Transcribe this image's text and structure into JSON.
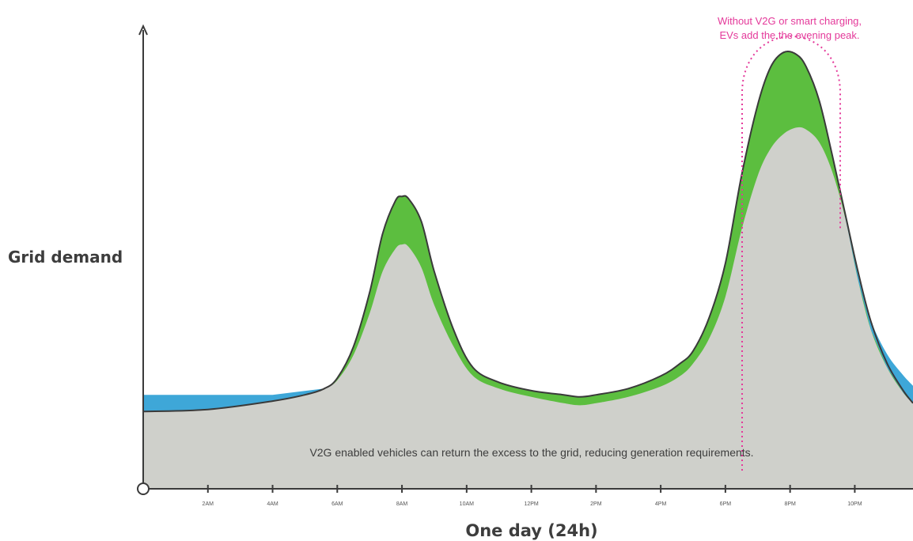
{
  "chart_data": {
    "type": "area",
    "title": "",
    "xlabel": "One day (24h)",
    "ylabel": "Grid demand",
    "x_unit": "hour of day",
    "xlim": [
      0,
      23.8
    ],
    "ylim": [
      0,
      100
    ],
    "tick_labels": [
      {
        "x": 2,
        "label": "2AM"
      },
      {
        "x": 4,
        "label": "4AM"
      },
      {
        "x": 6,
        "label": "6AM"
      },
      {
        "x": 8,
        "label": "8AM"
      },
      {
        "x": 10,
        "label": "10AM"
      },
      {
        "x": 12,
        "label": "12PM"
      },
      {
        "x": 14,
        "label": "2PM"
      },
      {
        "x": 16,
        "label": "4PM"
      },
      {
        "x": 18,
        "label": "6PM"
      },
      {
        "x": 20,
        "label": "8PM"
      },
      {
        "x": 22,
        "label": "10PM"
      }
    ],
    "series": [
      {
        "role": "base",
        "color": "#cfd0cb",
        "x": [
          0,
          2,
          4,
          5,
          5.6,
          6,
          6.5,
          7,
          7.4,
          7.8,
          8,
          8.2,
          8.6,
          9,
          9.6,
          10.2,
          11,
          12,
          13,
          13.5,
          14,
          15,
          16,
          16.6,
          17,
          17.5,
          18,
          18.5,
          19,
          19.4,
          19.8,
          20.2,
          20.5,
          20.9,
          21.3,
          21.7,
          22.1,
          22.5,
          23,
          23.5,
          23.8
        ],
        "values": [
          18.5,
          19,
          21,
          22.5,
          24,
          26,
          32,
          42,
          52,
          57.5,
          58.5,
          58,
          53,
          44,
          34,
          27,
          24,
          22,
          20.5,
          20,
          20.5,
          22,
          24.5,
          27,
          30,
          36,
          46,
          62,
          75,
          81.5,
          85,
          86.5,
          86,
          83,
          76,
          65,
          50,
          38,
          29,
          23,
          20.5
        ]
      },
      {
        "role": "total_with_ev",
        "color": "#5cbe3f",
        "x": [
          0,
          2,
          4,
          5,
          5.6,
          6,
          6.5,
          7,
          7.4,
          7.8,
          8,
          8.2,
          8.6,
          9,
          9.6,
          10.2,
          11,
          12,
          13,
          13.5,
          14,
          15,
          16,
          16.6,
          17,
          17.5,
          18,
          18.5,
          19,
          19.4,
          19.8,
          20.2,
          20.5,
          20.9,
          21.3,
          21.7,
          22.1,
          22.5,
          23,
          23.5,
          23.8
        ],
        "values": [
          18.5,
          19,
          21,
          22.5,
          24,
          26.5,
          34,
          47,
          61,
          69,
          70,
          69.5,
          64,
          52,
          38,
          29,
          25.5,
          23.5,
          22.5,
          22,
          22.5,
          24,
          27,
          30,
          33,
          41,
          54,
          75,
          92,
          101,
          104.5,
          104,
          101,
          93,
          80,
          66,
          52,
          40,
          30,
          23.5,
          20.5
        ]
      },
      {
        "role": "v2g_excess",
        "color": "#3ea7d8",
        "x": [
          0,
          2,
          4,
          5.6
        ],
        "values": [
          22.5,
          22.5,
          22.5,
          24
        ]
      }
    ],
    "annotations": [
      {
        "text": "V2G enabled vehicles can return the excess to the grid, reducing generation requirements.",
        "color": "#3d3d3d"
      },
      {
        "text_lines": [
          "Without V2G or smart charging,",
          "EVs add the the evening peak."
        ],
        "color": "#e4399a"
      }
    ]
  }
}
